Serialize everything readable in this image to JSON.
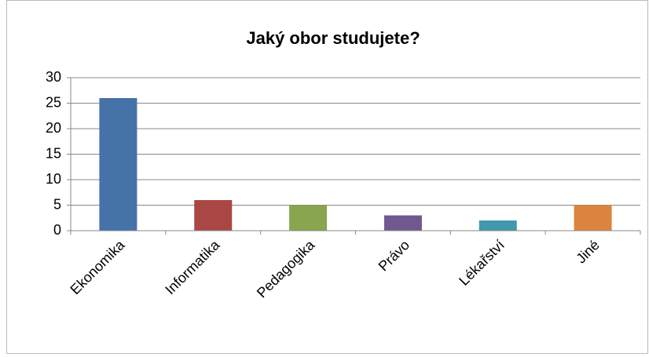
{
  "chart_data": {
    "type": "bar",
    "title": "Jaký obor studujete?",
    "categories": [
      "Ekonomika",
      "Informatika",
      "Pedagogika",
      "Právo",
      "Lékařství",
      "Jiné"
    ],
    "values": [
      26,
      6,
      5,
      3,
      2,
      5
    ],
    "colors": [
      "#4572a7",
      "#aa4643",
      "#89a54e",
      "#71588f",
      "#4198af",
      "#db843d"
    ],
    "ylim": [
      0,
      30
    ],
    "yticks": [
      0,
      5,
      10,
      15,
      20,
      25,
      30
    ],
    "grid": true
  }
}
